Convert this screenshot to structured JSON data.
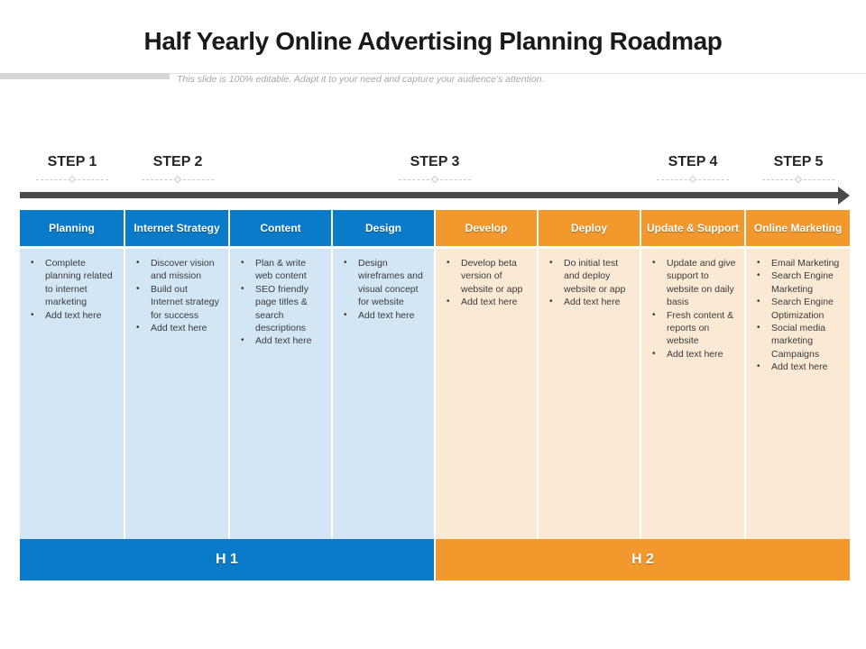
{
  "title": "Half Yearly Online Advertising Planning Roadmap",
  "subtitle": "This slide is 100% editable. Adapt it to your need and capture your audience’s attention.",
  "colors": {
    "blue": "#0a7bc9",
    "orange": "#f2982c",
    "light_blue": "#d3e6f5",
    "light_orange": "#fbe9d4",
    "arrow": "#4a4a4a"
  },
  "steps": [
    "STEP 1",
    "STEP 2",
    "STEP 3",
    "STEP 4",
    "STEP 5"
  ],
  "columns": [
    {
      "heading": "Planning",
      "items": [
        "Complete planning related to internet marketing",
        "Add text here"
      ]
    },
    {
      "heading": "Internet Strategy",
      "items": [
        "Discover vision and mission",
        "Build out Internet strategy for success",
        "Add text here"
      ]
    },
    {
      "heading": "Content",
      "items": [
        "Plan & write web content",
        "SEO friendly page titles & search descriptions",
        "Add text here"
      ]
    },
    {
      "heading": "Design",
      "items": [
        "Design wireframes and visual concept for website",
        "Add text here"
      ]
    },
    {
      "heading": "Develop",
      "items": [
        "Develop beta version of website or app",
        "Add text here"
      ]
    },
    {
      "heading": "Deploy",
      "items": [
        "Do initial test and deploy website or app",
        "Add text here"
      ]
    },
    {
      "heading": "Update & Support",
      "items": [
        "Update and give support to website on daily basis",
        "Fresh content & reports on website",
        "Add text here"
      ]
    },
    {
      "heading": "Online Marketing",
      "items": [
        "Email Marketing",
        "Search Engine Marketing",
        "Search Engine Optimization",
        "Social media marketing Campaigns",
        "Add text here"
      ]
    }
  ],
  "halves": {
    "h1": "H 1",
    "h2": "H 2"
  }
}
